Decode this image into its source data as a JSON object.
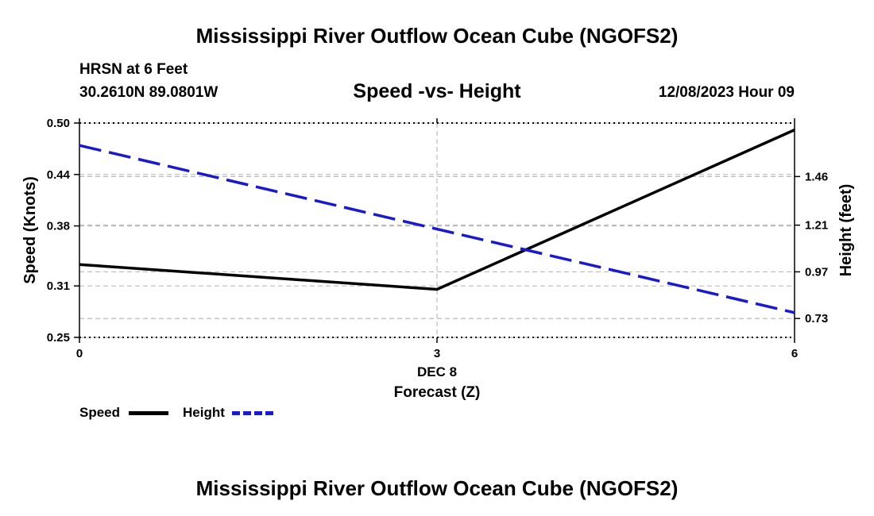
{
  "header": {
    "title": "Mississippi River Outflow Ocean Cube (NGOFS2)",
    "station": "HRSN at 6 Feet",
    "coords": "30.2610N  89.0801W",
    "subtitle": "Speed -vs- Height",
    "datetime": "12/08/2023 Hour 09"
  },
  "chart_data": {
    "type": "line",
    "title": "Speed -vs- Height",
    "xlabel": "Forecast (Z)",
    "x_date_label": "DEC 8",
    "xlim": [
      0,
      6
    ],
    "x_ticks": [
      "0",
      "3",
      "6"
    ],
    "y_left": {
      "label": "Speed (Knots)",
      "lim": [
        0.25,
        0.5
      ],
      "ticks": [
        "0.25",
        "0.31",
        "0.38",
        "0.44",
        "0.50"
      ]
    },
    "y_right": {
      "label": "Height (feet)",
      "lim": [
        0.633,
        1.735
      ],
      "ticks": [
        "0.73",
        "0.97",
        "1.21",
        "1.46"
      ]
    },
    "series": [
      {
        "name": "Speed",
        "axis": "left",
        "color": "#000000",
        "style": "solid",
        "x": [
          0,
          3,
          6
        ],
        "values": [
          0.335,
          0.306,
          0.492
        ]
      },
      {
        "name": "Height",
        "axis": "right",
        "color": "#1a1acc",
        "style": "dashed",
        "x": [
          0,
          3,
          6
        ],
        "values": [
          1.62,
          1.19,
          0.76
        ]
      }
    ],
    "grid": true
  },
  "legend": {
    "speed_label": "Speed",
    "height_label": "Height"
  },
  "footer": {
    "title": "Mississippi River Outflow Ocean Cube (NGOFS2)"
  }
}
